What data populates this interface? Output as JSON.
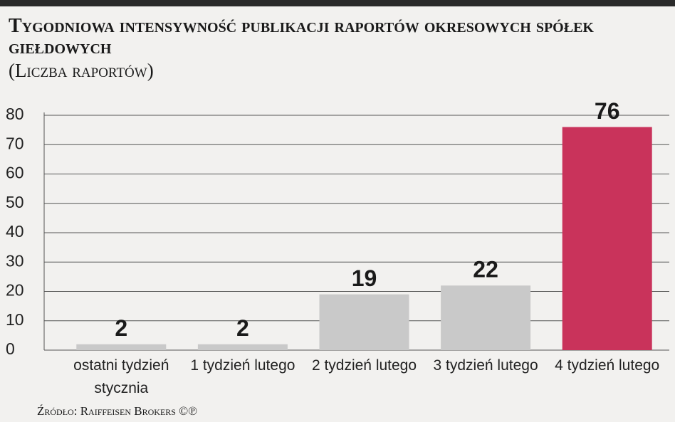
{
  "chart_data": {
    "type": "bar",
    "title": "Tygodniowa intensywność publikacji raportów okresowych spółek giełdowych",
    "subtitle": "(Liczba raportów)",
    "categories": [
      "ostatni tydzień stycznia",
      "1 tydzień lutego",
      "2 tydzień lutego",
      "3 tydzień lutego",
      "4 tydzień lutego"
    ],
    "values": [
      2,
      2,
      19,
      22,
      76
    ],
    "colors": [
      "#c9c9c9",
      "#c9c9c9",
      "#c9c9c9",
      "#c9c9c9",
      "#c9335b"
    ],
    "ylim": [
      0,
      80
    ],
    "yticks": [
      0,
      10,
      20,
      30,
      40,
      50,
      60,
      70,
      80
    ],
    "grid": true,
    "source": "Źródło: Raiffeisen Brokers ©℗"
  }
}
